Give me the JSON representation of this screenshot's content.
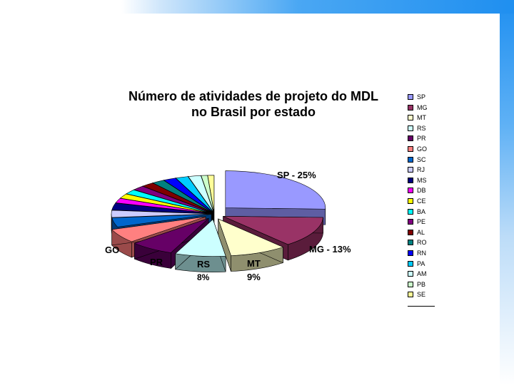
{
  "chart_data": {
    "type": "pie",
    "style": "3d-exploded",
    "title_line1": "Número de atividades de projeto do MDL",
    "title_line2": "no Brasil por estado",
    "legend_placement": "right",
    "slices": [
      {
        "label": "SP",
        "value": 25,
        "color": "#9999ff",
        "side": "#5e5ea3"
      },
      {
        "label": "MG",
        "value": 13,
        "color": "#993366",
        "side": "#5a1c3b"
      },
      {
        "label": "MT",
        "value": 9,
        "color": "#ffffcc",
        "side": "#8f8f6e"
      },
      {
        "label": "RS",
        "value": 8,
        "color": "#ccffff",
        "side": "#6d8f8f"
      },
      {
        "label": "PR",
        "value": 7,
        "color": "#660066",
        "side": "#3a003a"
      },
      {
        "label": "GO",
        "value": 6,
        "color": "#ff8080",
        "side": "#9a4a4a"
      },
      {
        "label": "SC",
        "value": 4,
        "color": "#0066cc",
        "side": "#003a75"
      },
      {
        "label": "RJ",
        "value": 3,
        "color": "#ccccff",
        "side": "#7a7a99"
      },
      {
        "label": "MS",
        "value": 3,
        "color": "#000080",
        "side": "#000048"
      },
      {
        "label": "DB",
        "value": 2,
        "color": "#ff00ff",
        "side": "#8f008f"
      },
      {
        "label": "CE",
        "value": 2,
        "color": "#ffff00",
        "side": "#8f8f00"
      },
      {
        "label": "BA",
        "value": 2,
        "color": "#00ffff",
        "side": "#008f8f"
      },
      {
        "label": "PE",
        "value": 2,
        "color": "#800080",
        "side": "#480048"
      },
      {
        "label": "AL",
        "value": 2,
        "color": "#800000",
        "side": "#480000"
      },
      {
        "label": "RO",
        "value": 2,
        "color": "#008080",
        "side": "#004848"
      },
      {
        "label": "RN",
        "value": 2,
        "color": "#0000ff",
        "side": "#00008f"
      },
      {
        "label": "PA",
        "value": 2,
        "color": "#00ccff",
        "side": "#00738f"
      },
      {
        "label": "AM",
        "value": 2,
        "color": "#ccffff",
        "side": "#6d8f8f"
      },
      {
        "label": "PB",
        "value": 1,
        "color": "#ccffcc",
        "side": "#6d8f6d"
      },
      {
        "label": "SE",
        "value": 1,
        "color": "#ffff99",
        "side": "#8f8f55"
      }
    ],
    "data_labels": [
      {
        "text": "SP - 25%"
      },
      {
        "text": "MG - 13%"
      },
      {
        "text": "MT"
      },
      {
        "text": "9%"
      },
      {
        "text": "RS"
      },
      {
        "text": "8%"
      },
      {
        "text": "PR"
      },
      {
        "text": "GO"
      }
    ]
  }
}
